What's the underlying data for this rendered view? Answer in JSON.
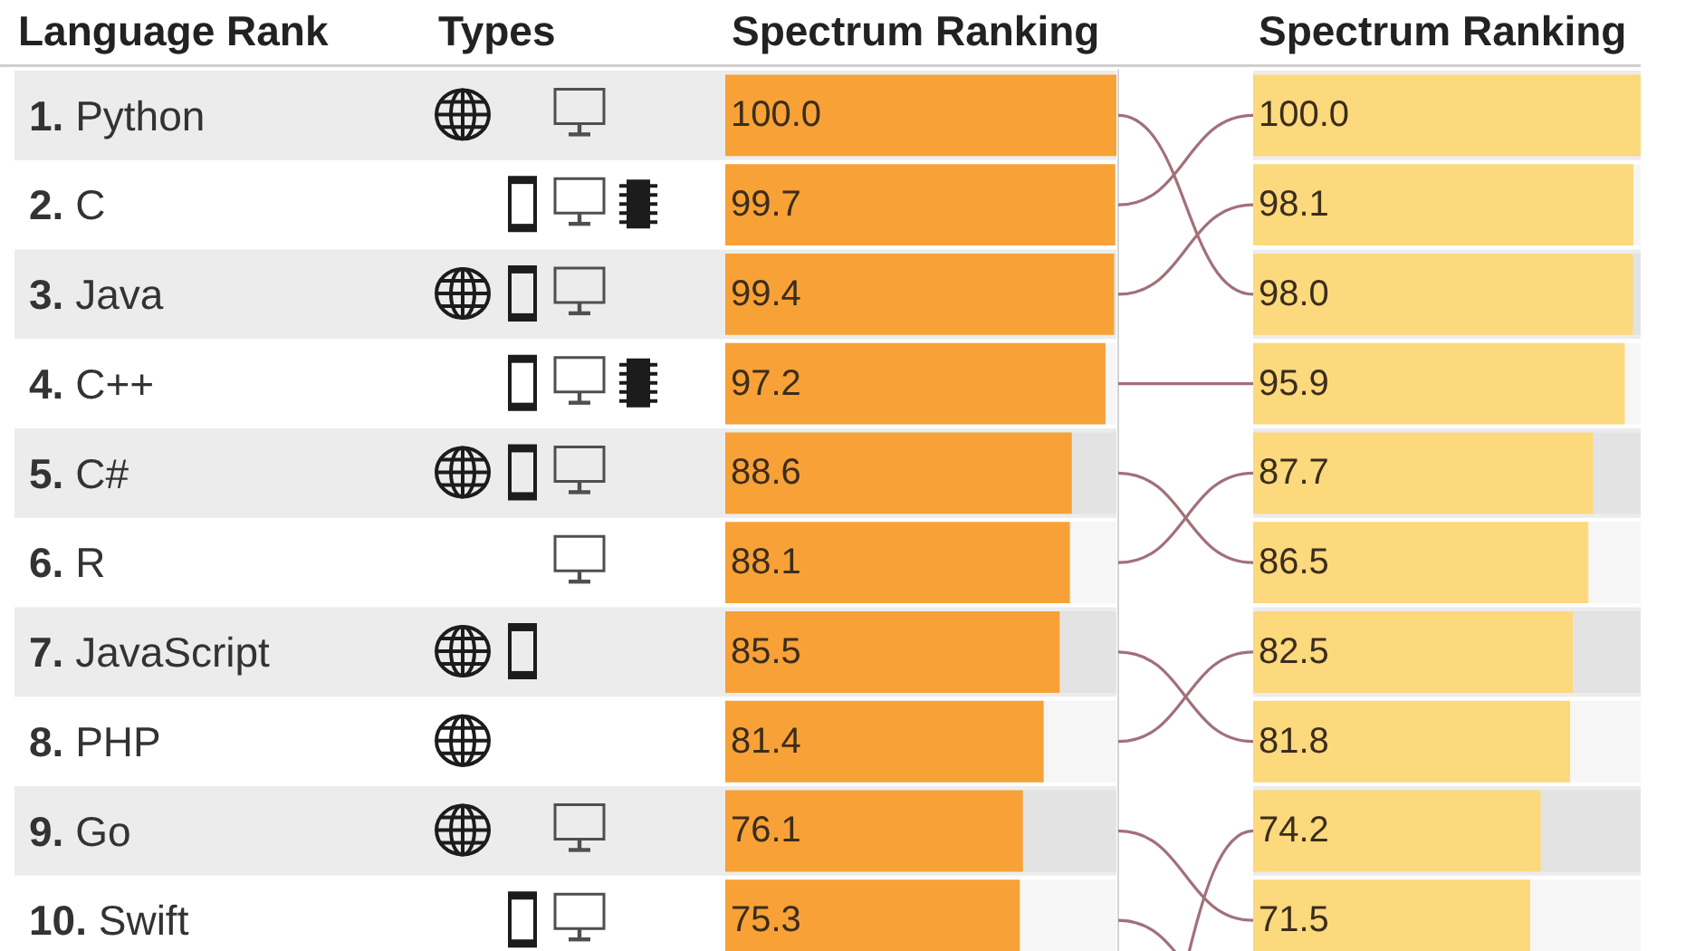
{
  "chart_data": [
    {
      "type": "bar",
      "orientation": "horizontal",
      "ylabel": "Language Rank",
      "xlabel": "Spectrum Ranking",
      "annotations": [
        "Types"
      ],
      "categories": [
        "1. Python",
        "2. C",
        "3. Java",
        "4. C++",
        "5. C#",
        "6. R",
        "7. JavaScript",
        "8. PHP",
        "9. Go",
        "10. Swift"
      ],
      "values": [
        100.0,
        99.7,
        99.4,
        97.2,
        88.6,
        88.1,
        85.5,
        81.4,
        76.1,
        75.3
      ],
      "value_labels": [
        "100.0",
        "99.7",
        "99.4",
        "97.2",
        "88.6",
        "88.1",
        "85.5",
        "81.4",
        "76.1",
        "75.3"
      ],
      "color": "#f7a137",
      "xlim": [
        0,
        100
      ],
      "tick_labels": "y"
    },
    {
      "type": "bar",
      "orientation": "horizontal",
      "xlabel": "Spectrum Ranking",
      "categories": [
        null,
        null,
        null,
        null,
        null,
        null,
        null,
        null,
        null,
        null
      ],
      "values": [
        100.0,
        98.1,
        98.0,
        95.9,
        87.7,
        86.5,
        82.5,
        81.8,
        74.2,
        71.5
      ],
      "value_labels": [
        "100.0",
        "98.1",
        "98.0",
        "95.9",
        "87.7",
        "86.5",
        "82.5",
        "81.8",
        "74.2",
        "71.5"
      ],
      "color": "#fdd97d",
      "xlim": [
        0,
        100
      ],
      "tick_labels": false
    }
  ]
}
